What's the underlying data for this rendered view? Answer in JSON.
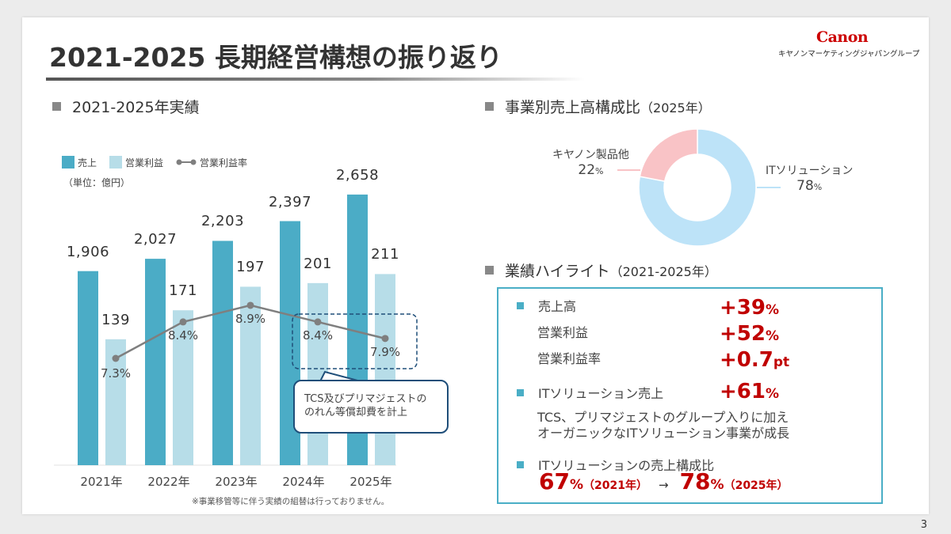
{
  "header": {
    "title": "2021-2025 長期経営構想の振り返り",
    "logo_text": "Canon",
    "logo_sub": "キヤノンマーケティングジャパングループ"
  },
  "left_section": {
    "title": "2021-2025年実績"
  },
  "right_section": {
    "title": "事業別売上高構成比",
    "title_suffix": "（2025年）"
  },
  "highlight_section": {
    "title": "業績ハイライト",
    "title_suffix": "（2021-2025年）"
  },
  "colors": {
    "sales": "#4bacc6",
    "profit": "#b7dde8",
    "margin_line": "#7f7f7f",
    "it": "#bde3f8",
    "canon": "#f9c3c6",
    "accent_red": "#c00000",
    "box_border": "#4aaec6"
  },
  "chart_data": [
    {
      "type": "bar",
      "legend": [
        "売上",
        "営業利益",
        "営業利益率"
      ],
      "unit_label": "（単位：億円）",
      "categories": [
        "2021年",
        "2022年",
        "2023年",
        "2024年",
        "2025年"
      ],
      "series": [
        {
          "name": "売上",
          "type": "bar",
          "values": [
            1906,
            2027,
            2203,
            2397,
            2658
          ],
          "labels": [
            "1,906",
            "2,027",
            "2,203",
            "2,397",
            "2,658"
          ]
        },
        {
          "name": "営業利益",
          "type": "bar",
          "values": [
            139,
            171,
            197,
            201,
            211
          ],
          "labels": [
            "139",
            "171",
            "197",
            "201",
            "211"
          ]
        },
        {
          "name": "営業利益率",
          "type": "line",
          "values": [
            7.3,
            8.4,
            8.9,
            8.4,
            7.9
          ],
          "labels": [
            "7.3%",
            "8.4%",
            "8.9%",
            "8.4%",
            "7.9%"
          ]
        }
      ],
      "annotation": "TCS及びプリマジェストのれん等償却費を計上",
      "annotation_lines": [
        "TCS及びプリマジェストの",
        "のれん等償却費を計上"
      ],
      "footnote": "※事業移管等に伴う実績の組替は行っておりません。"
    },
    {
      "type": "pie",
      "donut": true,
      "slices": [
        {
          "name": "ITソリューション",
          "value": 78,
          "label": "78",
          "unit": "%"
        },
        {
          "name": "キヤノン製品他",
          "value": 22,
          "label": "22",
          "unit": "%"
        }
      ]
    }
  ],
  "highlights": {
    "sales_label": "売上高",
    "sales_value": "+39",
    "sales_unit": "%",
    "profit_label": "営業利益",
    "profit_value": "+52",
    "profit_unit": "%",
    "margin_label": "営業利益率",
    "margin_value": "+0.7",
    "margin_unit": "pt",
    "it_label": "ITソリューション売上",
    "it_value": "+61",
    "it_unit": "%",
    "it_desc_1": "TCS、プリマジェストのグループ入りに加え",
    "it_desc_2": "オーガニックなITソリューション事業が成長",
    "ratio_label": "ITソリューションの売上構成比",
    "ratio_from": "67",
    "ratio_from_unit": "%",
    "ratio_from_year": "（2021年）",
    "arrow": "→",
    "ratio_to": "78",
    "ratio_to_unit": "%",
    "ratio_to_year": "（2025年）"
  },
  "page_number": "3"
}
